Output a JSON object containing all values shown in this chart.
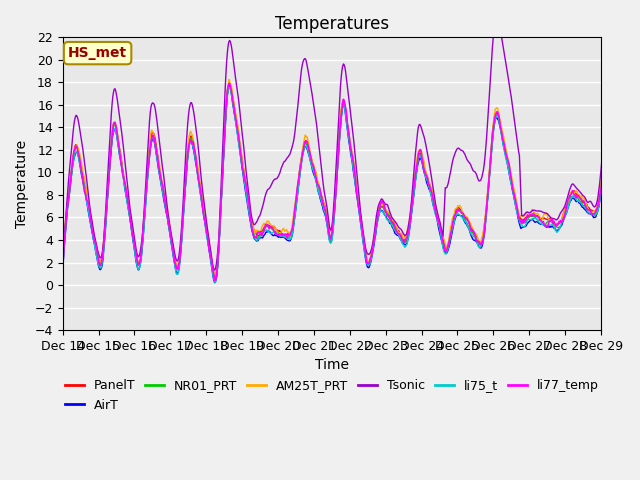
{
  "title": "Temperatures",
  "xlabel": "Time",
  "ylabel": "Temperature",
  "ylim": [
    -4,
    22
  ],
  "yticks": [
    -4,
    -2,
    0,
    2,
    4,
    6,
    8,
    10,
    12,
    14,
    16,
    18,
    20,
    22
  ],
  "xtick_labels": [
    "Dec 14",
    "Dec 15",
    "Dec 16",
    "Dec 17",
    "Dec 18",
    "Dec 19",
    "Dec 20",
    "Dec 21",
    "Dec 22",
    "Dec 23",
    "Dec 24",
    "Dec 25",
    "Dec 26",
    "Dec 27",
    "Dec 28",
    "Dec 29"
  ],
  "series_colors": {
    "PanelT": "#ff0000",
    "AirT": "#0000ff",
    "NR01_PRT": "#00cc00",
    "AM25T_PRT": "#ffaa00",
    "Tsonic": "#9900cc",
    "li75_t": "#00cccc",
    "li77_temp": "#ff00ff"
  },
  "annotation_text": "HS_met",
  "annotation_bg": "#ffffcc",
  "annotation_border": "#aa8800",
  "annotation_text_color": "#990000",
  "bg_color": "#e8e8e8",
  "grid_color": "#ffffff",
  "title_fontsize": 12,
  "label_fontsize": 10,
  "tick_fontsize": 9,
  "legend_fontsize": 9
}
